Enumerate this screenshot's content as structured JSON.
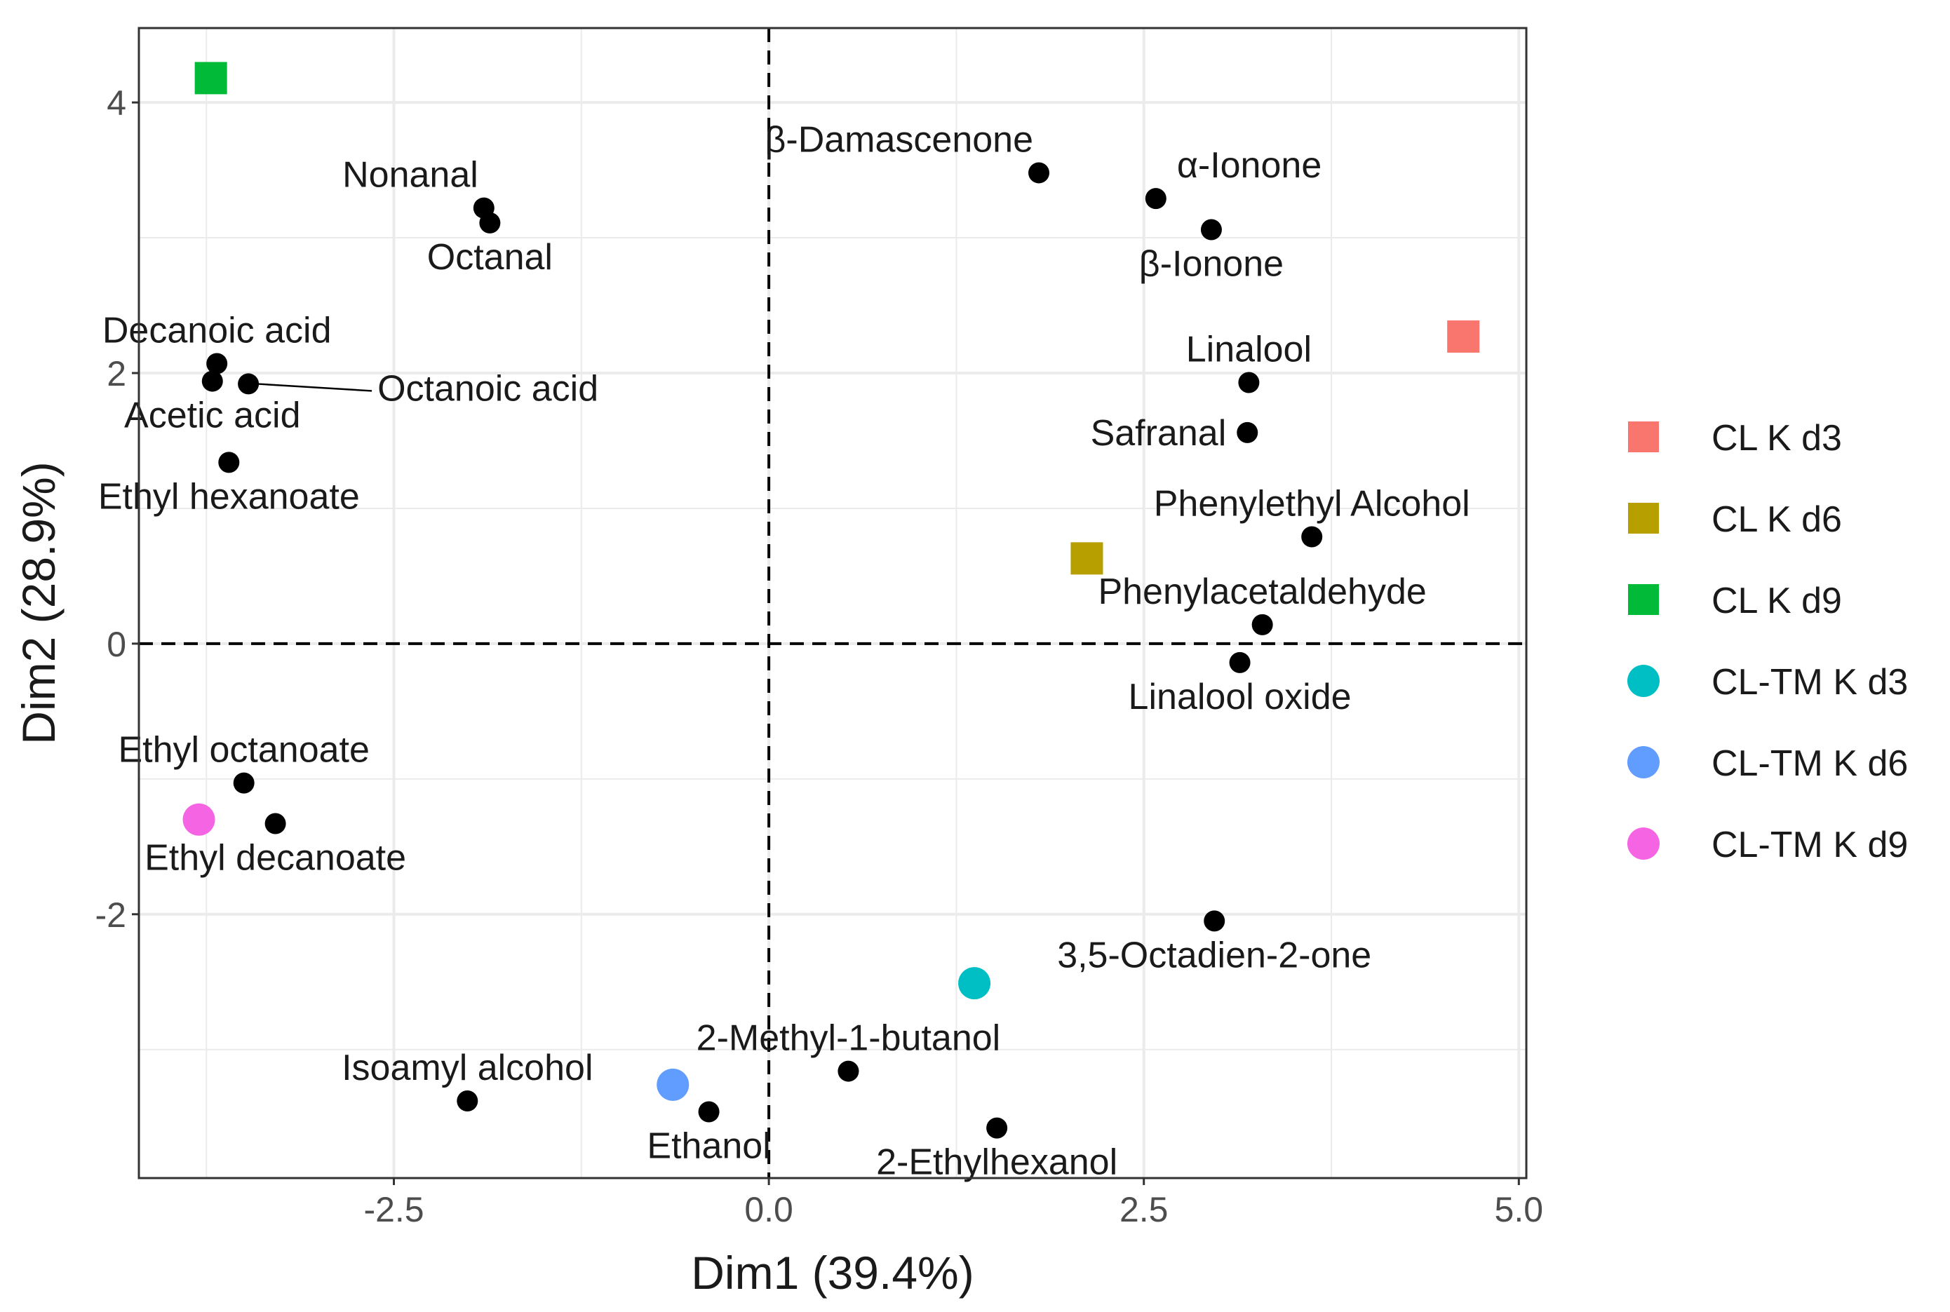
{
  "chart_data": {
    "type": "scatter",
    "title": "",
    "xlabel": "Dim1 (39.4%)",
    "ylabel": "Dim2 (28.9%)",
    "xlim": [
      -4.2,
      5.05
    ],
    "ylim": [
      -3.95,
      4.55
    ],
    "x_ticks": [
      -2.5,
      0.0,
      2.5,
      5.0
    ],
    "x_tick_labels": [
      "-2.5",
      "0.0",
      "2.5",
      "5.0"
    ],
    "y_ticks": [
      -2,
      0,
      2,
      4
    ],
    "y_tick_labels": [
      "-2",
      "0",
      "2",
      "4"
    ],
    "grid": true,
    "reference_lines": {
      "x": 0,
      "y": 0,
      "style": "dashed"
    },
    "variables": [
      {
        "name": "β-Damascenone",
        "x": 1.8,
        "y": 3.48,
        "label_anchor": "above-left"
      },
      {
        "name": "α-Ionone",
        "x": 2.58,
        "y": 3.29,
        "label_anchor": "above-right"
      },
      {
        "name": "β-Ionone",
        "x": 2.95,
        "y": 3.06,
        "label_anchor": "below"
      },
      {
        "name": "Nonanal",
        "x": -1.9,
        "y": 3.22,
        "label_anchor": "above-left"
      },
      {
        "name": "Octanal",
        "x": -1.86,
        "y": 3.11,
        "label_anchor": "below"
      },
      {
        "name": "Decanoic acid",
        "x": -3.68,
        "y": 2.07,
        "label_anchor": "above"
      },
      {
        "name": "Acetic acid",
        "x": -3.71,
        "y": 1.94,
        "label_anchor": "below"
      },
      {
        "name": "Octanoic acid",
        "x": -3.47,
        "y": 1.92,
        "label_anchor": "right-leader"
      },
      {
        "name": "Ethyl hexanoate",
        "x": -3.6,
        "y": 1.34,
        "label_anchor": "below"
      },
      {
        "name": "Linalool",
        "x": 3.2,
        "y": 1.93,
        "label_anchor": "above"
      },
      {
        "name": "Safranal",
        "x": 3.19,
        "y": 1.56,
        "label_anchor": "left"
      },
      {
        "name": "Phenylethyl Alcohol",
        "x": 3.62,
        "y": 0.79,
        "label_anchor": "above"
      },
      {
        "name": "Phenylacetaldehyde",
        "x": 3.29,
        "y": 0.14,
        "label_anchor": "above"
      },
      {
        "name": "Linalool oxide",
        "x": 3.14,
        "y": -0.14,
        "label_anchor": "below"
      },
      {
        "name": "Ethyl octanoate",
        "x": -3.5,
        "y": -1.03,
        "label_anchor": "above"
      },
      {
        "name": "Ethyl decanoate",
        "x": -3.29,
        "y": -1.33,
        "label_anchor": "below"
      },
      {
        "name": "3,5-Octadien-2-one",
        "x": 2.97,
        "y": -2.05,
        "label_anchor": "below"
      },
      {
        "name": "2-Methyl-1-butanol",
        "x": 0.53,
        "y": -3.16,
        "label_anchor": "above"
      },
      {
        "name": "Isoamyl alcohol",
        "x": -2.01,
        "y": -3.38,
        "label_anchor": "above"
      },
      {
        "name": "Ethanol",
        "x": -0.4,
        "y": -3.46,
        "label_anchor": "below"
      },
      {
        "name": "2-Ethylhexanol",
        "x": 1.52,
        "y": -3.58,
        "label_anchor": "below"
      }
    ],
    "series": [
      {
        "name": "CL K d3",
        "shape": "square",
        "color": "#F8766D",
        "x": 4.63,
        "y": 2.27
      },
      {
        "name": "CL K d6",
        "shape": "square",
        "color": "#B79F00",
        "x": 2.12,
        "y": 0.63
      },
      {
        "name": "CL K d9",
        "shape": "square",
        "color": "#00BA38",
        "x": -3.72,
        "y": 4.18
      },
      {
        "name": "CL-TM K d3",
        "shape": "circle",
        "color": "#00BFC4",
        "x": 1.37,
        "y": -2.51
      },
      {
        "name": "CL-TM K d6",
        "shape": "circle",
        "color": "#619CFF",
        "x": -0.64,
        "y": -3.26
      },
      {
        "name": "CL-TM K d9",
        "shape": "circle",
        "color": "#F564E3",
        "x": -3.8,
        "y": -1.3
      }
    ],
    "legend": {
      "position": "right"
    },
    "colors": {
      "point": "#000000",
      "grid": "#ebebeb",
      "border": "#333333",
      "tick": "#4d4d4d",
      "background": "#ffffff"
    }
  }
}
